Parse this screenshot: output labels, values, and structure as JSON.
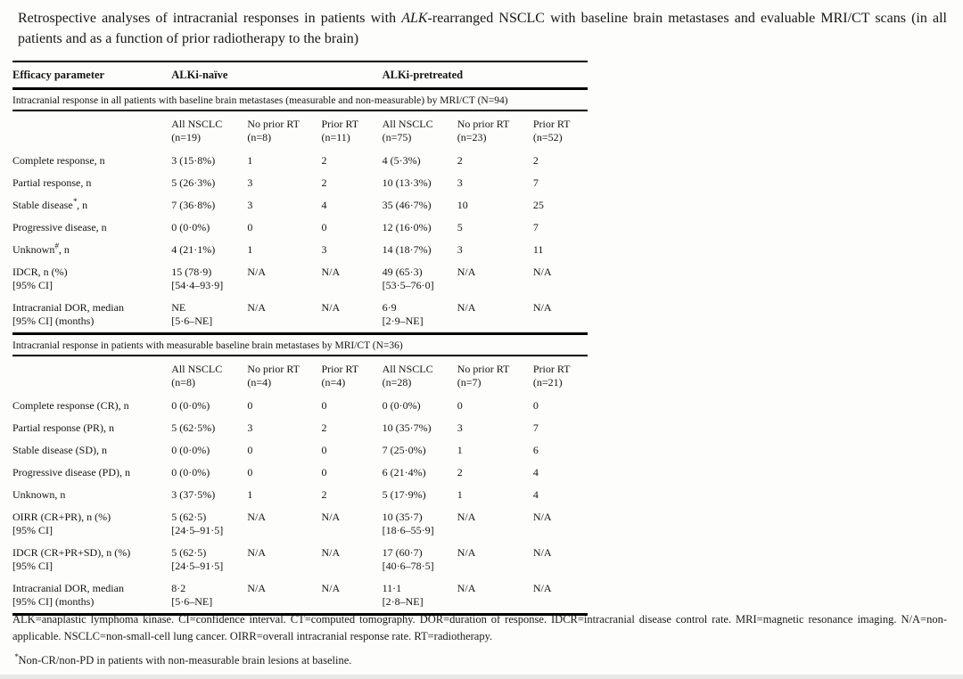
{
  "page": {
    "title_prefix": "Retrospective analyses of intracranial responses in patients with ",
    "title_gene": "ALK",
    "title_suffix": "-rearranged NSCLC with baseline brain metastases and evaluable MRI/CT scans (in all patients and as a function of prior radiotherapy to the brain)"
  },
  "table": {
    "header": {
      "efficacy": "Efficacy parameter",
      "naive": "ALKi-naïve",
      "pretreated": "ALKi-pretreated"
    },
    "sections": [
      {
        "heading": "Intracranial response in all patients with baseline brain metastases (measurable and non-measurable) by MRI/CT (N=94)",
        "cols": [
          "All NSCLC\n(n=19)",
          "No prior RT\n(n=8)",
          "Prior RT\n(n=11)",
          "All NSCLC\n(n=75)",
          "No prior RT\n(n=23)",
          "Prior RT\n(n=52)"
        ],
        "rows": [
          {
            "label": "Complete response, n",
            "sup": "",
            "label2": "",
            "cells": [
              "3 (15·8%)",
              "1",
              "2",
              "4 (5·3%)",
              "2",
              "2"
            ]
          },
          {
            "label": "Partial response, n",
            "sup": "",
            "label2": "",
            "cells": [
              "5 (26·3%)",
              "3",
              "2",
              "10 (13·3%)",
              "3",
              "7"
            ]
          },
          {
            "label": "Stable disease",
            "sup": "*",
            "label2": ", n",
            "cells": [
              "7 (36·8%)",
              "3",
              "4",
              "35 (46·7%)",
              "10",
              "25"
            ]
          },
          {
            "label": "Progressive disease, n",
            "sup": "",
            "label2": "",
            "cells": [
              "0 (0·0%)",
              "0",
              "0",
              "12 (16·0%)",
              "5",
              "7"
            ]
          },
          {
            "label": "Unknown",
            "sup": "#",
            "label2": ", n",
            "cells": [
              "4 (21·1%)",
              "1",
              "3",
              "14 (18·7%)",
              "3",
              "11"
            ]
          },
          {
            "label": "IDCR, n (%)\n[95% CI]",
            "sup": "",
            "label2": "",
            "cells": [
              "15 (78·9)\n[54·4–93·9]",
              "N/A",
              "N/A",
              "49 (65·3)\n[53·5–76·0]",
              "N/A",
              "N/A"
            ]
          },
          {
            "label": "Intracranial DOR, median\n[95% CI] (months)",
            "sup": "",
            "label2": "",
            "cells": [
              "NE\n[5·6–NE]",
              "N/A",
              "N/A",
              "6·9\n[2·9–NE]",
              "N/A",
              "N/A"
            ]
          }
        ]
      },
      {
        "heading": "Intracranial response in patients with measurable baseline brain metastases by MRI/CT (N=36)",
        "cols": [
          "All NSCLC\n(n=8)",
          "No prior RT\n(n=4)",
          "Prior RT\n(n=4)",
          "All NSCLC\n(n=28)",
          "No prior RT\n(n=7)",
          "Prior RT\n(n=21)"
        ],
        "rows": [
          {
            "label": "Complete response (CR), n",
            "sup": "",
            "label2": "",
            "cells": [
              "0 (0·0%)",
              "0",
              "0",
              "0 (0·0%)",
              "0",
              "0"
            ]
          },
          {
            "label": "Partial response (PR), n",
            "sup": "",
            "label2": "",
            "cells": [
              "5 (62·5%)",
              "3",
              "2",
              "10 (35·7%)",
              "3",
              "7"
            ]
          },
          {
            "label": "Stable disease (SD), n",
            "sup": "",
            "label2": "",
            "cells": [
              "0 (0·0%)",
              "0",
              "0",
              "7 (25·0%)",
              "1",
              "6"
            ]
          },
          {
            "label": "Progressive disease (PD), n",
            "sup": "",
            "label2": "",
            "cells": [
              "0 (0·0%)",
              "0",
              "0",
              "6 (21·4%)",
              "2",
              "4"
            ]
          },
          {
            "label": "Unknown, n",
            "sup": "",
            "label2": "",
            "cells": [
              "3 (37·5%)",
              "1",
              "2",
              "5 (17·9%)",
              "1",
              "4"
            ]
          },
          {
            "label": "OIRR (CR+PR), n (%)\n[95% CI]",
            "sup": "",
            "label2": "",
            "cells": [
              "5 (62·5)\n[24·5–91·5]",
              "N/A",
              "N/A",
              "10 (35·7)\n[18·6–55·9]",
              "N/A",
              "N/A"
            ]
          },
          {
            "label": "IDCR (CR+PR+SD), n (%)\n[95% CI]",
            "sup": "",
            "label2": "",
            "cells": [
              "5 (62·5)\n[24·5–91·5]",
              "N/A",
              "N/A",
              "17 (60·7)\n[40·6–78·5]",
              "N/A",
              "N/A"
            ]
          },
          {
            "label": "Intracranial DOR, median\n[95% CI] (months)",
            "sup": "",
            "label2": "",
            "cells": [
              "8·2\n[5·6–NE]",
              "N/A",
              "N/A",
              "11·1\n[2·8–NE]",
              "N/A",
              "N/A"
            ]
          }
        ]
      }
    ]
  },
  "notes": {
    "abbreviations": "ALK=anaplastic lymphoma kinase. CI=confidence interval. CT=computed tomography. DOR=duration of response. IDCR=intracranial disease control rate. MRI=magnetic resonance imaging. N/A=non-applicable. NSCLC=non-small-cell lung cancer. OIRR=overall intracranial response rate. RT=radiotherapy.",
    "footnote_sup": "*",
    "footnote_text": "Non-CR/non-PD in patients with non-measurable brain lesions at baseline."
  }
}
